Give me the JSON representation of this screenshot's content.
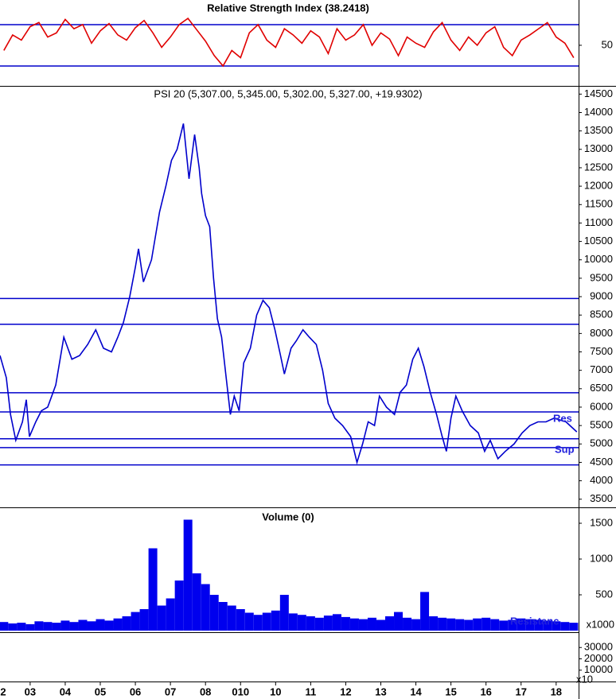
{
  "chart_data": [
    {
      "type": "line",
      "title": "Relative Strength Index (38.2418)",
      "color": "#e00000",
      "xlim": [
        2002.64,
        2019.14
      ],
      "ylim": [
        11.5,
        93.8
      ],
      "yticks": [
        50
      ],
      "levels": [
        70,
        30
      ],
      "level_color": "#0000cc",
      "x": [
        2002.75,
        2003,
        2003.25,
        2003.5,
        2003.75,
        2004,
        2004.25,
        2004.5,
        2004.75,
        2005,
        2005.25,
        2005.5,
        2005.75,
        2006,
        2006.25,
        2006.5,
        2006.75,
        2007,
        2007.25,
        2007.5,
        2007.75,
        2008,
        2008.25,
        2008.5,
        2008.75,
        2009,
        2009.25,
        2009.5,
        2009.75,
        2010,
        2010.25,
        2010.5,
        2010.75,
        2011,
        2011.25,
        2011.5,
        2011.75,
        2012,
        2012.25,
        2012.5,
        2012.75,
        2013,
        2013.25,
        2013.5,
        2013.75,
        2014,
        2014.25,
        2014.5,
        2014.75,
        2015,
        2015.25,
        2015.5,
        2015.75,
        2016,
        2016.25,
        2016.5,
        2016.75,
        2017,
        2017.25,
        2017.5,
        2017.75,
        2018,
        2018.25,
        2018.5,
        2018.75,
        2019
      ],
      "values": [
        45,
        60,
        55,
        68,
        72,
        58,
        62,
        75,
        66,
        70,
        52,
        64,
        71,
        60,
        55,
        67,
        74,
        62,
        48,
        58,
        70,
        76,
        65,
        54,
        40,
        30,
        45,
        38,
        62,
        70,
        55,
        48,
        66,
        60,
        52,
        64,
        58,
        42,
        66,
        55,
        60,
        70,
        50,
        62,
        56,
        40,
        58,
        52,
        48,
        63,
        72,
        55,
        45,
        58,
        50,
        62,
        68,
        48,
        40,
        55,
        60,
        66,
        72,
        58,
        52,
        38
      ]
    },
    {
      "type": "line",
      "title": "PSI 20 (5,307.00, 5,345.00, 5,302.00, 5,327.00, +19.9302)",
      "color": "#0000cc",
      "xlim": [
        2002.64,
        2019.14
      ],
      "ylim": [
        3300,
        14680
      ],
      "yticks": [
        3500,
        4000,
        4500,
        5000,
        5500,
        6000,
        6500,
        7000,
        7500,
        8000,
        8500,
        9000,
        9500,
        10000,
        10500,
        11000,
        11500,
        12000,
        12500,
        13000,
        13500,
        14000,
        14500
      ],
      "levels": [
        8950,
        8250,
        6390,
        5870,
        5140,
        4900,
        4430
      ],
      "level_color": "#0000cc",
      "annotations": [
        "Res",
        "Sup"
      ],
      "x": [
        2002.64,
        2002.82,
        2002.94,
        2003.09,
        2003.28,
        2003.39,
        2003.48,
        2003.66,
        2003.82,
        2004.0,
        2004.23,
        2004.46,
        2004.69,
        2004.91,
        2005.14,
        2005.37,
        2005.59,
        2005.82,
        2006.0,
        2006.16,
        2006.34,
        2006.5,
        2006.59,
        2006.73,
        2006.96,
        2007.19,
        2007.37,
        2007.53,
        2007.69,
        2007.87,
        2008.03,
        2008.19,
        2008.32,
        2008.39,
        2008.5,
        2008.62,
        2008.73,
        2008.84,
        2008.96,
        2009.09,
        2009.21,
        2009.32,
        2009.46,
        2009.59,
        2009.78,
        2009.96,
        2010.14,
        2010.32,
        2010.48,
        2010.64,
        2010.75,
        2010.94,
        2011.09,
        2011.28,
        2011.46,
        2011.66,
        2011.84,
        2012.0,
        2012.19,
        2012.41,
        2012.64,
        2012.82,
        2012.98,
        2013.14,
        2013.32,
        2013.46,
        2013.66,
        2013.89,
        2014.05,
        2014.23,
        2014.41,
        2014.57,
        2014.73,
        2014.91,
        2015.09,
        2015.25,
        2015.37,
        2015.5,
        2015.64,
        2015.82,
        2016.05,
        2016.28,
        2016.46,
        2016.62,
        2016.84,
        2017.05,
        2017.3,
        2017.53,
        2017.75,
        2017.98,
        2018.21,
        2018.44,
        2018.78,
        2019.09
      ],
      "values": [
        7400,
        6800,
        5800,
        5100,
        5600,
        6200,
        5200,
        5600,
        5900,
        6000,
        6600,
        7900,
        7300,
        7400,
        7700,
        8100,
        7600,
        7500,
        7900,
        8300,
        9000,
        9800,
        10300,
        9400,
        10000,
        11300,
        12000,
        12700,
        13000,
        13700,
        12200,
        13400,
        12500,
        11800,
        11200,
        10900,
        9500,
        8400,
        7900,
        6800,
        5800,
        6300,
        5900,
        7200,
        7600,
        8500,
        8900,
        8700,
        8100,
        7400,
        6900,
        7600,
        7800,
        8100,
        7900,
        7700,
        7000,
        6100,
        5700,
        5500,
        5200,
        4500,
        5000,
        5600,
        5500,
        6300,
        6000,
        5800,
        6400,
        6600,
        7300,
        7600,
        7100,
        6400,
        5800,
        5200,
        4800,
        5700,
        6300,
        5900,
        5500,
        5300,
        4800,
        5100,
        4600,
        4800,
        5000,
        5300,
        5500,
        5600,
        5600,
        5700,
        5600,
        5327
      ]
    },
    {
      "type": "bar",
      "title": "Volume (0)",
      "color": "#0000ee",
      "xlim": [
        2002.64,
        2019.14
      ],
      "ylim": [
        0,
        1700
      ],
      "yticks": [
        500,
        1000,
        1500
      ],
      "unit_label": "x1000",
      "y2lim": [
        0,
        43500
      ],
      "y2ticks": [
        10000,
        20000,
        30000
      ],
      "y2_unit_label": "x10",
      "annotations": [
        "Resistanc"
      ],
      "xticks": [
        {
          "value": 2002.5,
          "label": "2"
        },
        {
          "value": 2003.5,
          "label": "03"
        },
        {
          "value": 2004.5,
          "label": "04"
        },
        {
          "value": 2005.5,
          "label": "05"
        },
        {
          "value": 2006.5,
          "label": "06"
        },
        {
          "value": 2007.5,
          "label": "07"
        },
        {
          "value": 2008.5,
          "label": "08"
        },
        {
          "value": 2009.5,
          "label": "010"
        },
        {
          "value": 2010.5,
          "label": "10"
        },
        {
          "value": 2011.5,
          "label": "11"
        },
        {
          "value": 2012.5,
          "label": "12"
        },
        {
          "value": 2013.5,
          "label": "13"
        },
        {
          "value": 2014.5,
          "label": "14"
        },
        {
          "value": 2015.5,
          "label": "15"
        },
        {
          "value": 2016.5,
          "label": "16"
        },
        {
          "value": 2017.5,
          "label": "17"
        },
        {
          "value": 2018.5,
          "label": "18"
        }
      ],
      "x": [
        2002.75,
        2003,
        2003.25,
        2003.5,
        2003.75,
        2004,
        2004.25,
        2004.5,
        2004.75,
        2005,
        2005.25,
        2005.5,
        2005.75,
        2006,
        2006.25,
        2006.5,
        2006.75,
        2007,
        2007.25,
        2007.5,
        2007.75,
        2008,
        2008.25,
        2008.5,
        2008.75,
        2009,
        2009.25,
        2009.5,
        2009.75,
        2010,
        2010.25,
        2010.5,
        2010.75,
        2011,
        2011.25,
        2011.5,
        2011.75,
        2012,
        2012.25,
        2012.5,
        2012.75,
        2013,
        2013.25,
        2013.5,
        2013.75,
        2014,
        2014.25,
        2014.5,
        2014.75,
        2015,
        2015.25,
        2015.5,
        2015.75,
        2016,
        2016.25,
        2016.5,
        2016.75,
        2017,
        2017.25,
        2017.5,
        2017.75,
        2018,
        2018.25,
        2018.5,
        2018.75,
        2019
      ],
      "values": [
        120,
        100,
        110,
        90,
        130,
        120,
        110,
        140,
        120,
        150,
        130,
        160,
        140,
        170,
        200,
        260,
        300,
        1150,
        350,
        450,
        700,
        1550,
        800,
        650,
        500,
        400,
        350,
        300,
        250,
        220,
        250,
        280,
        500,
        240,
        220,
        200,
        180,
        210,
        230,
        190,
        170,
        160,
        180,
        150,
        200,
        260,
        180,
        160,
        540,
        200,
        180,
        170,
        160,
        150,
        170,
        180,
        160,
        140,
        150,
        170,
        160,
        150,
        140,
        130,
        120,
        110
      ]
    }
  ]
}
